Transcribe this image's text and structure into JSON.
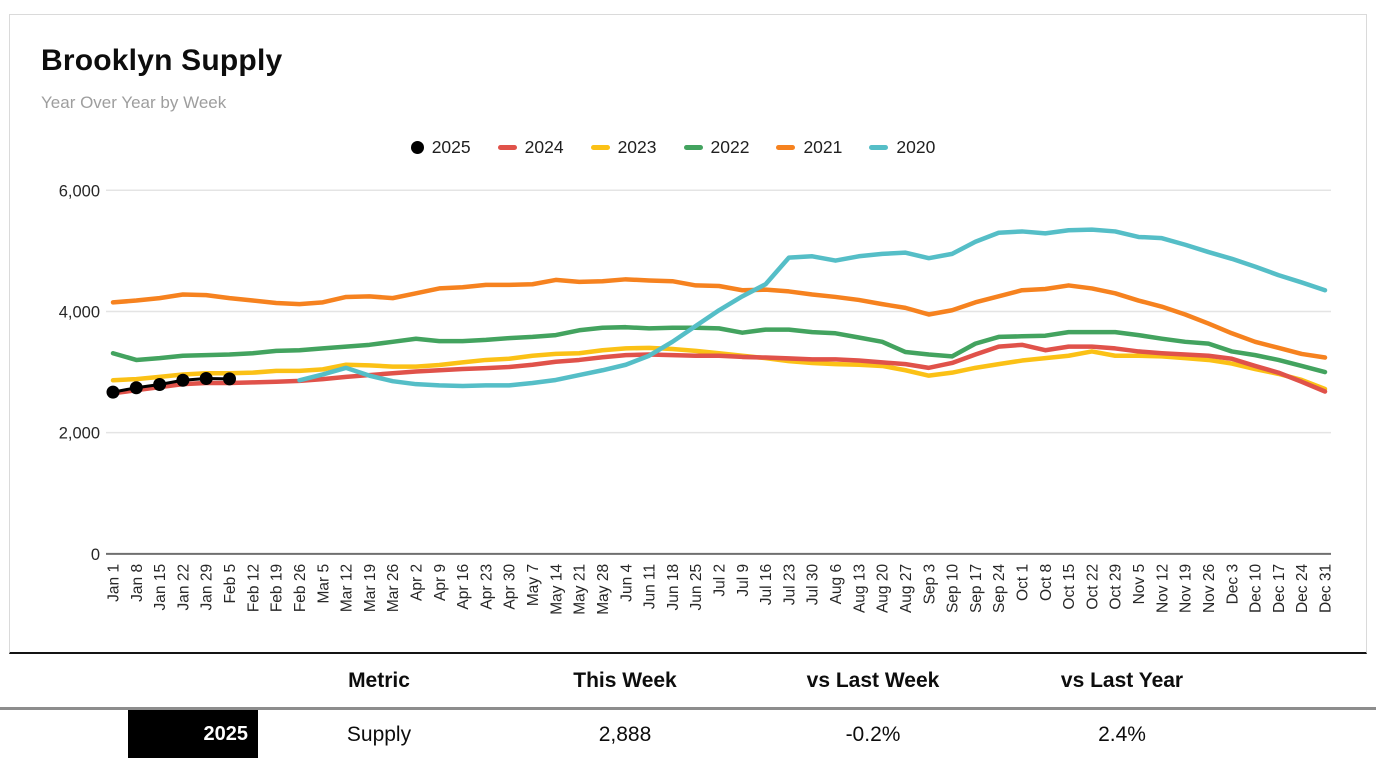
{
  "header": {
    "title": "Brooklyn Supply",
    "subtitle": "Year Over Year by Week"
  },
  "chart_data": {
    "type": "line",
    "title": "Brooklyn Supply",
    "subtitle": "Year Over Year by Week",
    "legend_position": "top",
    "grid": true,
    "ylim": [
      0,
      6000
    ],
    "yticks": [
      0,
      2000,
      4000,
      6000
    ],
    "ytick_labels": [
      "0",
      "2,000",
      "4,000",
      "6,000"
    ],
    "x_labels": [
      "Jan 1",
      "Jan 8",
      "Jan 15",
      "Jan 22",
      "Jan 29",
      "Feb 5",
      "Feb 12",
      "Feb 19",
      "Feb 26",
      "Mar 5",
      "Mar 12",
      "Mar 19",
      "Mar 26",
      "Apr 2",
      "Apr 9",
      "Apr 16",
      "Apr 23",
      "Apr 30",
      "May 7",
      "May 14",
      "May 21",
      "May 28",
      "Jun 4",
      "Jun 11",
      "Jun 18",
      "Jun 25",
      "Jul 2",
      "Jul 9",
      "Jul 16",
      "Jul 23",
      "Jul 30",
      "Aug 6",
      "Aug 13",
      "Aug 20",
      "Aug 27",
      "Sep 3",
      "Sep 10",
      "Sep 17",
      "Sep 24",
      "Oct 1",
      "Oct 8",
      "Oct 15",
      "Oct 22",
      "Oct 29",
      "Nov 5",
      "Nov 12",
      "Nov 19",
      "Nov 26",
      "Dec 3",
      "Dec 10",
      "Dec 17",
      "Dec 24",
      "Dec 31"
    ],
    "series": [
      {
        "name": "2025",
        "color": "#000000",
        "marker": "circle",
        "values": [
          2670,
          2740,
          2795,
          2865,
          2894,
          2888
        ]
      },
      {
        "name": "2024",
        "color": "#e0524a",
        "marker": "dash",
        "values": [
          2650,
          2700,
          2750,
          2800,
          2820,
          2820,
          2830,
          2840,
          2855,
          2885,
          2920,
          2950,
          2980,
          3010,
          3030,
          3050,
          3065,
          3085,
          3120,
          3170,
          3200,
          3245,
          3280,
          3290,
          3280,
          3270,
          3270,
          3250,
          3240,
          3225,
          3210,
          3210,
          3190,
          3160,
          3130,
          3070,
          3150,
          3290,
          3420,
          3450,
          3360,
          3420,
          3420,
          3390,
          3340,
          3310,
          3290,
          3270,
          3220,
          3100,
          2990,
          2840,
          2680
        ]
      },
      {
        "name": "2023",
        "color": "#fbc116",
        "marker": "dash",
        "values": [
          2865,
          2885,
          2920,
          2960,
          2980,
          2980,
          2990,
          3020,
          3020,
          3045,
          3120,
          3110,
          3090,
          3090,
          3115,
          3160,
          3200,
          3220,
          3270,
          3300,
          3310,
          3360,
          3390,
          3400,
          3380,
          3350,
          3310,
          3270,
          3230,
          3180,
          3150,
          3130,
          3120,
          3100,
          3030,
          2940,
          2990,
          3070,
          3130,
          3190,
          3230,
          3270,
          3340,
          3270,
          3270,
          3260,
          3230,
          3200,
          3140,
          3050,
          2970,
          2870,
          2720
        ]
      },
      {
        "name": "2022",
        "color": "#43a35f",
        "marker": "dash",
        "values": [
          3310,
          3200,
          3230,
          3270,
          3280,
          3290,
          3310,
          3350,
          3360,
          3390,
          3420,
          3450,
          3500,
          3550,
          3510,
          3510,
          3530,
          3560,
          3580,
          3610,
          3690,
          3730,
          3740,
          3720,
          3730,
          3730,
          3720,
          3650,
          3700,
          3700,
          3660,
          3640,
          3570,
          3500,
          3330,
          3290,
          3260,
          3470,
          3580,
          3590,
          3600,
          3660,
          3660,
          3660,
          3610,
          3550,
          3500,
          3470,
          3340,
          3280,
          3200,
          3100,
          3000
        ]
      },
      {
        "name": "2021",
        "color": "#f6821f",
        "marker": "dash",
        "values": [
          4150,
          4180,
          4220,
          4280,
          4270,
          4220,
          4180,
          4140,
          4120,
          4150,
          4240,
          4250,
          4220,
          4300,
          4380,
          4400,
          4440,
          4440,
          4450,
          4520,
          4490,
          4500,
          4530,
          4510,
          4500,
          4430,
          4420,
          4350,
          4360,
          4330,
          4280,
          4240,
          4190,
          4120,
          4060,
          3950,
          4020,
          4150,
          4250,
          4350,
          4370,
          4430,
          4380,
          4300,
          4180,
          4080,
          3950,
          3800,
          3640,
          3500,
          3400,
          3300,
          3240
        ]
      },
      {
        "name": "2020",
        "color": "#55bec7",
        "marker": "dash",
        "values": [
          null,
          null,
          null,
          null,
          null,
          null,
          null,
          null,
          2865,
          2960,
          3070,
          2940,
          2850,
          2800,
          2780,
          2770,
          2780,
          2780,
          2820,
          2870,
          2950,
          3030,
          3120,
          3270,
          3500,
          3760,
          4020,
          4250,
          4450,
          4890,
          4910,
          4840,
          4910,
          4950,
          4970,
          4880,
          4950,
          5150,
          5300,
          5320,
          5290,
          5340,
          5350,
          5320,
          5230,
          5210,
          5100,
          4980,
          4870,
          4740,
          4600,
          4480,
          4350
        ]
      }
    ]
  },
  "table": {
    "columns": [
      "Metric",
      "This Week",
      "vs Last Week",
      "vs Last Year"
    ],
    "rows": [
      {
        "year": "2025",
        "metric": "Supply",
        "this_week": "2,888",
        "vs_last_week": "-0.2%",
        "vs_last_year": "2.4%"
      }
    ],
    "year_badge_color": "#000000"
  }
}
